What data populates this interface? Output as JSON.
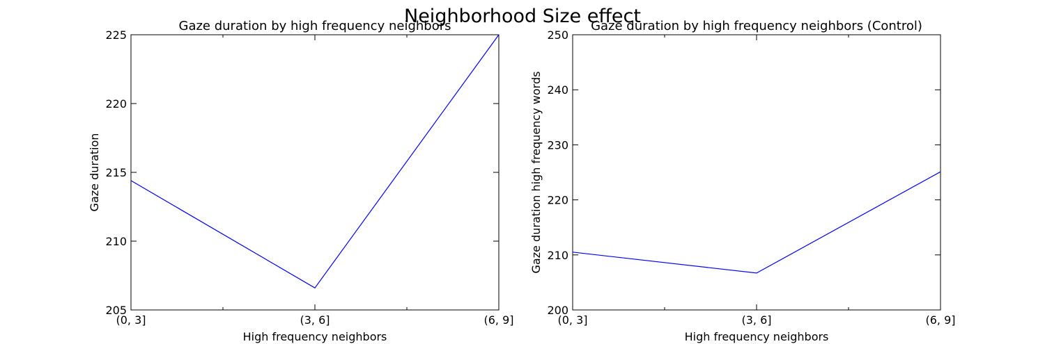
{
  "figure": {
    "suptitle": "Neighborhood Size effect"
  },
  "chart_data": [
    {
      "type": "line",
      "title": "Gaze duration by high frequency neighbors",
      "xlabel": "High frequency neighbors",
      "ylabel": "Gaze duration",
      "categories": [
        "(0, 3]",
        "(3, 6]",
        "(6, 9]"
      ],
      "series": [
        {
          "values": [
            214.4,
            206.6,
            225.0
          ],
          "color": "#0000ff"
        }
      ],
      "ylim": [
        205,
        225
      ],
      "yticks": [
        205,
        210,
        215,
        220,
        225
      ],
      "grid": false
    },
    {
      "type": "line",
      "title": "Gaze duration by high frequency neighbors (Control)",
      "xlabel": "High frequency neighbors",
      "ylabel": "Gaze duration high frequency words",
      "categories": [
        "(0, 3]",
        "(3, 6]",
        "(6, 9]"
      ],
      "series": [
        {
          "values": [
            210.5,
            206.7,
            225.1
          ],
          "color": "#0000ff"
        }
      ],
      "ylim": [
        200,
        250
      ],
      "yticks": [
        200,
        210,
        220,
        230,
        240,
        250
      ],
      "grid": false
    }
  ]
}
